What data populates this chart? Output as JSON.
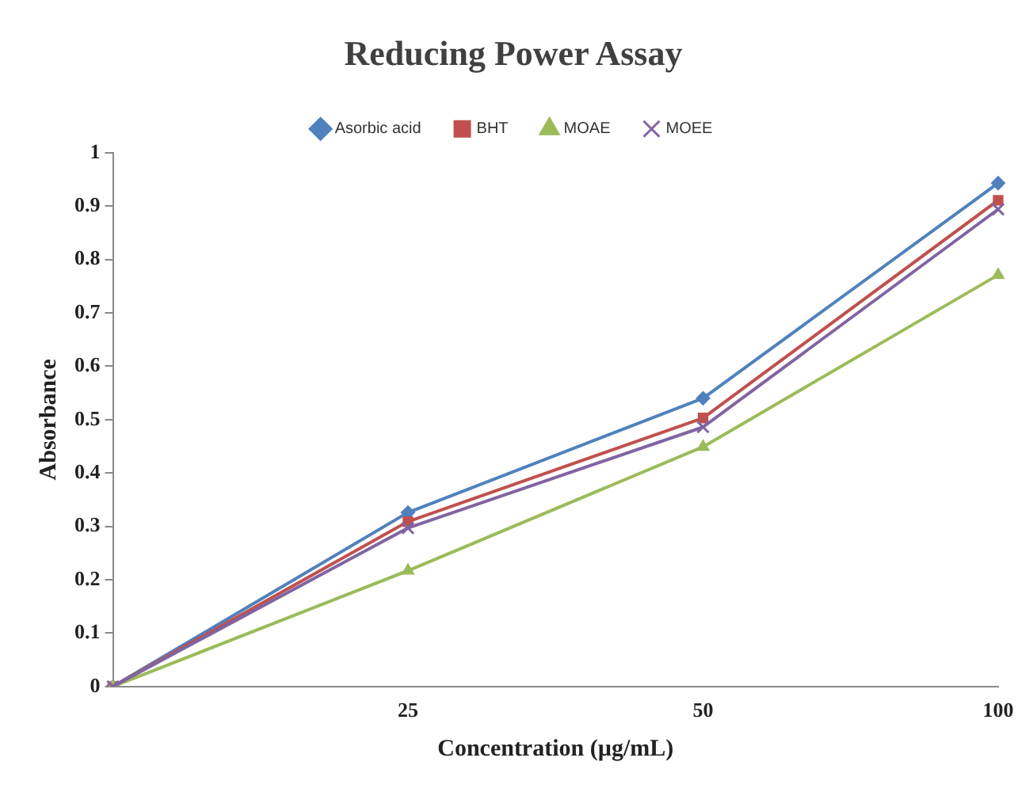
{
  "chart_data": {
    "type": "line",
    "title": "Reducing Power Assay",
    "xlabel": "Concentration (µg/mL)",
    "ylabel": "Absorbance",
    "categories": [
      null,
      "25",
      "50",
      "100"
    ],
    "series": [
      {
        "name": "Asorbic acid",
        "color": "#4f81bd",
        "marker": "diamond",
        "values": [
          0,
          0.326,
          0.54,
          0.943
        ]
      },
      {
        "name": "BHT",
        "color": "#c0504d",
        "marker": "square",
        "values": [
          0,
          0.309,
          0.503,
          0.911
        ]
      },
      {
        "name": "MOAE",
        "color": "#9bbb59",
        "marker": "triangle",
        "values": [
          0,
          0.217,
          0.449,
          0.771
        ]
      },
      {
        "name": "MOEE",
        "color": "#8064a2",
        "marker": "cross",
        "values": [
          0,
          0.297,
          0.486,
          0.894
        ]
      }
    ],
    "ylim": [
      0,
      1
    ],
    "yticks": [
      0,
      0.1,
      0.2,
      0.3,
      0.4,
      0.5,
      0.6,
      0.7,
      0.8,
      0.9,
      1
    ],
    "grid": false,
    "legend": "top",
    "line_style": "solid"
  }
}
